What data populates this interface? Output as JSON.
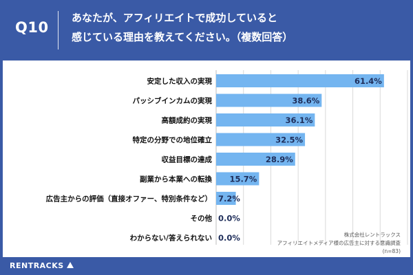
{
  "header": {
    "question_number": "Q10",
    "question_line1": "あなたが、アフィリエイトで成功していると",
    "question_line2": "感じている理由を教えてください。（複数回答）"
  },
  "source": {
    "line1": "株式会社レントラックス",
    "line2": "アフィリエイトメディア様の広告主に対する意識調査",
    "line3": "(n=83)"
  },
  "footer": {
    "logo_text": "RENTRACKS"
  },
  "colors": {
    "bar": "#74b5f0",
    "header_bg": "#3a5aa6",
    "grid": "#d9d9d9",
    "label": "#111111",
    "value_text": "#1f2e5a"
  },
  "chart_data": {
    "type": "bar",
    "orientation": "horizontal",
    "categories": [
      "安定した収入の実現",
      "パッシブインカムの実現",
      "高額成約の実現",
      "特定の分野での地位確立",
      "収益目標の達成",
      "副業から本業への転換",
      "広告主からの評価（直接オファー、特別条件など）",
      "その他",
      "わからない/答えられない"
    ],
    "values": [
      61.4,
      38.6,
      36.1,
      32.5,
      28.9,
      15.7,
      7.2,
      0.0,
      0.0
    ],
    "value_labels": [
      "61.4%",
      "38.6%",
      "36.1%",
      "32.5%",
      "28.9%",
      "15.7%",
      "7.2%",
      "0.0%",
      "0.0%"
    ],
    "xlim": [
      0,
      70
    ],
    "grid": true
  }
}
